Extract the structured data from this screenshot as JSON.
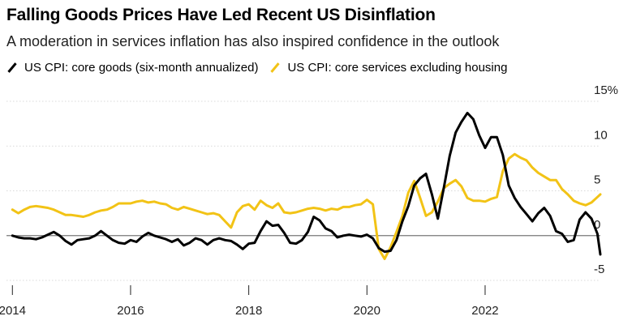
{
  "title": "Falling Goods Prices Have Led Recent US Disinflation",
  "subtitle": "A moderation in services inflation has also inspired confidence in the outlook",
  "legend": [
    {
      "label": "US CPI: core goods (six-month annualized)",
      "color": "#000000"
    },
    {
      "label": "US CPI: core services excluding housing",
      "color": "#f2c316"
    }
  ],
  "chart_data": {
    "type": "line",
    "xlabel": "",
    "ylabel": "",
    "xlim": [
      2013.9,
      2023.95
    ],
    "ylim": [
      -5,
      15
    ],
    "x_ticks": [
      {
        "value": 2014,
        "label": "2014"
      },
      {
        "value": 2016,
        "label": "2016"
      },
      {
        "value": 2018,
        "label": "2018"
      },
      {
        "value": 2020,
        "label": "2020"
      },
      {
        "value": 2022,
        "label": "2022"
      }
    ],
    "y_ticks": [
      {
        "value": 15,
        "label": "15%"
      },
      {
        "value": 10,
        "label": "10"
      },
      {
        "value": 5,
        "label": "5"
      },
      {
        "value": 0,
        "label": "0"
      },
      {
        "value": -5,
        "label": "-5"
      }
    ],
    "zero_line": true,
    "series": [
      {
        "name": "US CPI: core goods (six-month annualized)",
        "color": "#000000",
        "points": [
          [
            2014.0,
            0.0
          ],
          [
            2014.1,
            -0.2
          ],
          [
            2014.2,
            -0.3
          ],
          [
            2014.3,
            -0.3
          ],
          [
            2014.4,
            -0.4
          ],
          [
            2014.5,
            -0.2
          ],
          [
            2014.6,
            0.1
          ],
          [
            2014.7,
            0.4
          ],
          [
            2014.8,
            0.0
          ],
          [
            2014.9,
            -0.6
          ],
          [
            2015.0,
            -1.0
          ],
          [
            2015.1,
            -0.5
          ],
          [
            2015.2,
            -0.4
          ],
          [
            2015.3,
            -0.3
          ],
          [
            2015.4,
            0.0
          ],
          [
            2015.5,
            0.5
          ],
          [
            2015.6,
            0.0
          ],
          [
            2015.7,
            -0.5
          ],
          [
            2015.8,
            -0.8
          ],
          [
            2015.9,
            -0.9
          ],
          [
            2016.0,
            -0.5
          ],
          [
            2016.1,
            -0.7
          ],
          [
            2016.2,
            -0.1
          ],
          [
            2016.3,
            0.3
          ],
          [
            2016.4,
            0.0
          ],
          [
            2016.5,
            -0.2
          ],
          [
            2016.6,
            -0.4
          ],
          [
            2016.7,
            -0.7
          ],
          [
            2016.8,
            -0.4
          ],
          [
            2016.9,
            -1.1
          ],
          [
            2017.0,
            -0.8
          ],
          [
            2017.1,
            -0.3
          ],
          [
            2017.2,
            -0.5
          ],
          [
            2017.3,
            -1.0
          ],
          [
            2017.4,
            -0.5
          ],
          [
            2017.5,
            -0.3
          ],
          [
            2017.6,
            -0.5
          ],
          [
            2017.7,
            -0.6
          ],
          [
            2017.8,
            -1.0
          ],
          [
            2017.9,
            -1.5
          ],
          [
            2018.0,
            -0.9
          ],
          [
            2018.1,
            -0.8
          ],
          [
            2018.2,
            0.5
          ],
          [
            2018.3,
            1.6
          ],
          [
            2018.4,
            1.1
          ],
          [
            2018.5,
            1.2
          ],
          [
            2018.6,
            0.3
          ],
          [
            2018.7,
            -0.8
          ],
          [
            2018.8,
            -0.9
          ],
          [
            2018.9,
            -0.5
          ],
          [
            2019.0,
            0.4
          ],
          [
            2019.1,
            2.1
          ],
          [
            2019.2,
            1.7
          ],
          [
            2019.3,
            0.8
          ],
          [
            2019.4,
            0.5
          ],
          [
            2019.5,
            -0.2
          ],
          [
            2019.6,
            0.0
          ],
          [
            2019.7,
            0.1
          ],
          [
            2019.8,
            0.0
          ],
          [
            2019.9,
            -0.1
          ],
          [
            2020.0,
            0.1
          ],
          [
            2020.1,
            -0.3
          ],
          [
            2020.2,
            -1.4
          ],
          [
            2020.3,
            -1.8
          ],
          [
            2020.4,
            -1.7
          ],
          [
            2020.5,
            -0.5
          ],
          [
            2020.6,
            1.6
          ],
          [
            2020.7,
            3.3
          ],
          [
            2020.8,
            5.6
          ],
          [
            2020.9,
            6.4
          ],
          [
            2021.0,
            6.9
          ],
          [
            2021.1,
            4.6
          ],
          [
            2021.2,
            1.9
          ],
          [
            2021.3,
            5.3
          ],
          [
            2021.4,
            8.9
          ],
          [
            2021.5,
            11.5
          ],
          [
            2021.6,
            12.7
          ],
          [
            2021.7,
            13.7
          ],
          [
            2021.8,
            13.0
          ],
          [
            2021.9,
            11.2
          ],
          [
            2022.0,
            9.8
          ],
          [
            2022.1,
            11.0
          ],
          [
            2022.2,
            11.0
          ],
          [
            2022.3,
            9.0
          ],
          [
            2022.4,
            5.6
          ],
          [
            2022.5,
            4.2
          ],
          [
            2022.6,
            3.2
          ],
          [
            2022.7,
            2.4
          ],
          [
            2022.8,
            1.6
          ],
          [
            2022.9,
            2.5
          ],
          [
            2023.0,
            3.1
          ],
          [
            2023.1,
            2.2
          ],
          [
            2023.2,
            0.5
          ],
          [
            2023.3,
            0.2
          ],
          [
            2023.4,
            -0.7
          ],
          [
            2023.5,
            -0.5
          ],
          [
            2023.6,
            1.8
          ],
          [
            2023.7,
            2.6
          ],
          [
            2023.8,
            1.9
          ],
          [
            2023.9,
            0.2
          ],
          [
            2023.95,
            -2.1
          ]
        ]
      },
      {
        "name": "US CPI: core services excluding housing",
        "color": "#f2c316",
        "points": [
          [
            2014.0,
            2.9
          ],
          [
            2014.1,
            2.5
          ],
          [
            2014.2,
            2.9
          ],
          [
            2014.3,
            3.2
          ],
          [
            2014.4,
            3.3
          ],
          [
            2014.5,
            3.2
          ],
          [
            2014.6,
            3.1
          ],
          [
            2014.7,
            2.9
          ],
          [
            2014.8,
            2.6
          ],
          [
            2014.9,
            2.3
          ],
          [
            2015.0,
            2.3
          ],
          [
            2015.1,
            2.2
          ],
          [
            2015.2,
            2.1
          ],
          [
            2015.3,
            2.3
          ],
          [
            2015.4,
            2.6
          ],
          [
            2015.5,
            2.8
          ],
          [
            2015.6,
            2.9
          ],
          [
            2015.7,
            3.2
          ],
          [
            2015.8,
            3.6
          ],
          [
            2015.9,
            3.6
          ],
          [
            2016.0,
            3.6
          ],
          [
            2016.1,
            3.8
          ],
          [
            2016.2,
            3.9
          ],
          [
            2016.3,
            3.7
          ],
          [
            2016.4,
            3.8
          ],
          [
            2016.5,
            3.6
          ],
          [
            2016.6,
            3.5
          ],
          [
            2016.7,
            3.1
          ],
          [
            2016.8,
            2.9
          ],
          [
            2016.9,
            3.2
          ],
          [
            2017.0,
            3.0
          ],
          [
            2017.1,
            2.8
          ],
          [
            2017.2,
            2.6
          ],
          [
            2017.3,
            2.4
          ],
          [
            2017.4,
            2.5
          ],
          [
            2017.5,
            2.3
          ],
          [
            2017.6,
            1.6
          ],
          [
            2017.7,
            0.9
          ],
          [
            2017.8,
            2.6
          ],
          [
            2017.9,
            3.3
          ],
          [
            2018.0,
            3.5
          ],
          [
            2018.1,
            2.9
          ],
          [
            2018.2,
            3.9
          ],
          [
            2018.3,
            3.4
          ],
          [
            2018.4,
            3.1
          ],
          [
            2018.5,
            3.6
          ],
          [
            2018.6,
            2.6
          ],
          [
            2018.7,
            2.5
          ],
          [
            2018.8,
            2.6
          ],
          [
            2018.9,
            2.8
          ],
          [
            2019.0,
            3.0
          ],
          [
            2019.1,
            3.1
          ],
          [
            2019.2,
            3.0
          ],
          [
            2019.3,
            2.8
          ],
          [
            2019.4,
            3.0
          ],
          [
            2019.5,
            2.9
          ],
          [
            2019.6,
            3.2
          ],
          [
            2019.7,
            3.2
          ],
          [
            2019.8,
            3.4
          ],
          [
            2019.9,
            3.5
          ],
          [
            2020.0,
            4.0
          ],
          [
            2020.1,
            3.5
          ],
          [
            2020.2,
            -1.5
          ],
          [
            2020.3,
            -2.6
          ],
          [
            2020.4,
            -1.3
          ],
          [
            2020.5,
            0.4
          ],
          [
            2020.6,
            2.2
          ],
          [
            2020.7,
            4.8
          ],
          [
            2020.8,
            6.1
          ],
          [
            2020.9,
            4.2
          ],
          [
            2021.0,
            2.2
          ],
          [
            2021.1,
            2.6
          ],
          [
            2021.2,
            3.8
          ],
          [
            2021.3,
            5.3
          ],
          [
            2021.4,
            5.8
          ],
          [
            2021.5,
            6.2
          ],
          [
            2021.6,
            5.5
          ],
          [
            2021.7,
            4.2
          ],
          [
            2021.8,
            3.9
          ],
          [
            2021.9,
            3.9
          ],
          [
            2022.0,
            3.8
          ],
          [
            2022.1,
            4.1
          ],
          [
            2022.2,
            4.3
          ],
          [
            2022.3,
            7.2
          ],
          [
            2022.4,
            8.6
          ],
          [
            2022.5,
            9.1
          ],
          [
            2022.6,
            8.7
          ],
          [
            2022.7,
            8.4
          ],
          [
            2022.8,
            7.6
          ],
          [
            2022.9,
            7.0
          ],
          [
            2023.0,
            6.6
          ],
          [
            2023.1,
            6.2
          ],
          [
            2023.2,
            6.2
          ],
          [
            2023.3,
            5.2
          ],
          [
            2023.4,
            4.6
          ],
          [
            2023.5,
            3.9
          ],
          [
            2023.6,
            3.6
          ],
          [
            2023.7,
            3.4
          ],
          [
            2023.8,
            3.7
          ],
          [
            2023.9,
            4.3
          ],
          [
            2023.95,
            4.6
          ]
        ]
      }
    ]
  }
}
